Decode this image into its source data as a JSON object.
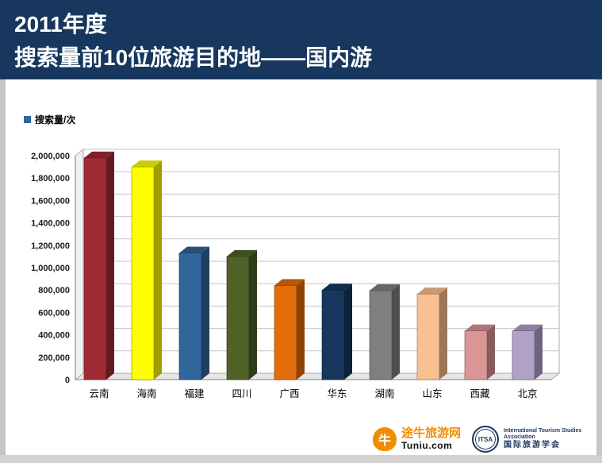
{
  "header": {
    "line1": "2011年度",
    "line2": "搜索量前10位旅游目的地——国内游",
    "bg_color": "#17375E",
    "text_color": "#FFFFFF"
  },
  "chart_data": {
    "type": "bar",
    "style": "3d",
    "title": "",
    "xlabel": "",
    "ylabel": "搜索量/次",
    "categories": [
      "云南",
      "海南",
      "福建",
      "四川",
      "广西",
      "华东",
      "湖南",
      "山东",
      "西藏",
      "北京"
    ],
    "series": [
      {
        "name": "搜索量/次",
        "values": [
          1980000,
          1900000,
          1130000,
          1100000,
          840000,
          800000,
          795000,
          765000,
          435000,
          435000
        ]
      }
    ],
    "colors": [
      "#A02B35",
      "#FFFF00",
      "#31659B",
      "#4F6228",
      "#E36C0A",
      "#17375E",
      "#7F7F7F",
      "#FAC08F",
      "#D99694",
      "#B2A1C7"
    ],
    "ylim": [
      0,
      2000000
    ],
    "ytick_step": 200000,
    "ytick_labels": [
      "0",
      "200,000",
      "400,000",
      "600,000",
      "800,000",
      "1,000,000",
      "1,200,000",
      "1,400,000",
      "1,600,000",
      "1,800,000",
      "2,000,000"
    ],
    "grid": true,
    "legend_position": "top-left",
    "legend_swatch_color": "#31659B"
  },
  "footer": {
    "tuniu": {
      "name_cn": "途牛旅游网",
      "domain": "Tuniu.com",
      "brand_color": "#F28C00",
      "mascot_glyph": "牛"
    },
    "itsa": {
      "abbr": "ITSA",
      "name_en": "International Tourism Studies Association",
      "name_cn": "国际旅游学会",
      "color": "#1F3864"
    }
  }
}
